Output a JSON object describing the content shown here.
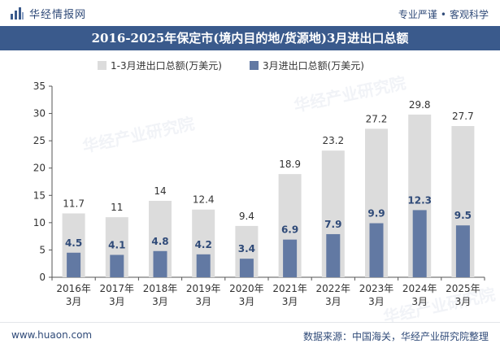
{
  "header": {
    "brand": "华经情报网",
    "slogan_left": "专业严谨",
    "slogan_sep": "•",
    "slogan_right": "客观科学",
    "logo_icon": "chart-logo-icon"
  },
  "title": "2016-2025年保定市(境内目的地/货源地)3月进出口总额",
  "watermark": "华经产业研究院",
  "footer": {
    "url": "www.huaon.com",
    "source": "数据来源：中国海关，华经产业研究院整理"
  },
  "chart_data": {
    "type": "bar",
    "categories": [
      "2016年\n3月",
      "2017年\n3月",
      "2018年\n3月",
      "2019年\n3月",
      "2020年\n3月",
      "2021年\n3月",
      "2022年\n3月",
      "2023年\n3月",
      "2024年\n3月",
      "2025年\n3月"
    ],
    "series": [
      {
        "name": "1-3月进出口总额(万美元)",
        "values": [
          11.7,
          11,
          14,
          12.4,
          9.4,
          18.9,
          23.2,
          27.2,
          29.8,
          27.7
        ],
        "color": "#dcdcdc"
      },
      {
        "name": "3月进出口总额(万美元)",
        "values": [
          4.5,
          4.1,
          4.8,
          4.2,
          3.4,
          6.9,
          7.9,
          9.9,
          12.3,
          9.5
        ],
        "color": "#6279a3"
      }
    ],
    "ylim": [
      0,
      35
    ],
    "yticks": [
      0,
      5,
      10,
      15,
      20,
      25,
      30,
      35
    ],
    "grid": false,
    "legend": "top",
    "overlay": true
  }
}
